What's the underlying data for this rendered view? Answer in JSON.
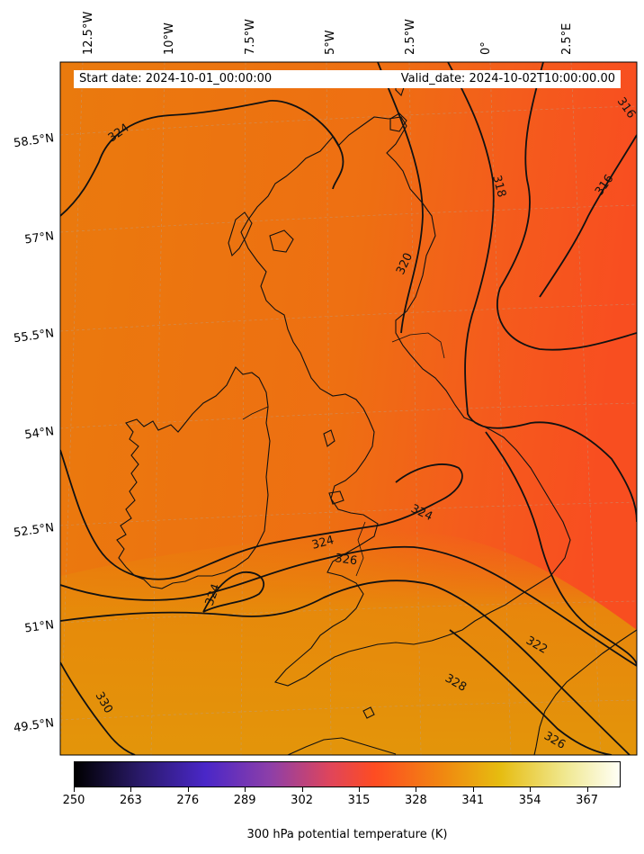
{
  "header": {
    "start_date": "Start date: 2024-10-01_00:00:00",
    "valid_date": "Valid_date: 2024-10-02T10:00:00.00"
  },
  "longitude_labels": [
    "12.5°W",
    "10°W",
    "7.5°W",
    "5°W",
    "2.5°W",
    "0°",
    "2.5°E"
  ],
  "latitude_labels": [
    "58.5°N",
    "57°N",
    "55.5°N",
    "54°N",
    "52.5°N",
    "51°N",
    "49.5°N"
  ],
  "contour_labels": [
    "324",
    "318",
    "316",
    "316",
    "320",
    "324",
    "324",
    "326",
    "324",
    "322",
    "328",
    "326",
    "330"
  ],
  "colorbar": {
    "ticks": [
      "250",
      "263",
      "276",
      "289",
      "302",
      "315",
      "328",
      "341",
      "354",
      "367"
    ],
    "title": "300 hPa potential temperature (K)",
    "colormap": [
      "#000000",
      "#4a27c8",
      "#fe4c22",
      "#e6bc10",
      "#fffff6"
    ]
  },
  "colors": {
    "field_west": "#ec7a0c",
    "field_east": "#f65a1e",
    "field_south": "#e58f0a",
    "contour": "#111111",
    "coastline": "#111111"
  }
}
